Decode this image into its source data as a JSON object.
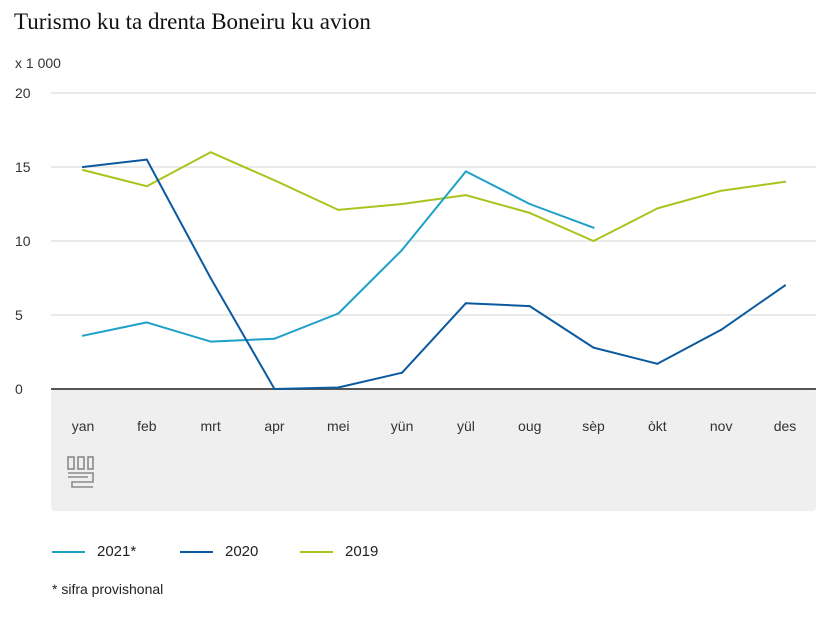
{
  "chart_data": {
    "type": "line",
    "title": "Turismo ku ta drenta Boneiru ku avion",
    "unit_label": "x 1 000",
    "categories": [
      "yan",
      "feb",
      "mrt",
      "apr",
      "mei",
      "yün",
      "yül",
      "oug",
      "sèp",
      "òkt",
      "nov",
      "des"
    ],
    "ylim": [
      0,
      20
    ],
    "yticks": [
      0,
      5,
      10,
      15,
      20
    ],
    "grid": true,
    "legend_position": "bottom",
    "series": [
      {
        "name": "2021*",
        "color": "#1ea0c8",
        "values": [
          3.6,
          4.5,
          3.2,
          3.4,
          5.1,
          9.4,
          14.7,
          12.5,
          10.9,
          null,
          null,
          null
        ]
      },
      {
        "name": "2020",
        "color": "#0b5aa0",
        "values": [
          15.0,
          15.5,
          7.5,
          0.0,
          0.1,
          1.1,
          5.8,
          5.6,
          2.8,
          1.7,
          4.0,
          7.0
        ]
      },
      {
        "name": "2019",
        "color": "#a8c51e",
        "values": [
          14.8,
          13.7,
          16.0,
          14.1,
          12.1,
          12.5,
          13.1,
          11.9,
          10.0,
          12.2,
          13.4,
          14.0
        ]
      }
    ]
  },
  "footnote": "* sifra provishonal",
  "logo_icon": "cbs-logo-icon"
}
